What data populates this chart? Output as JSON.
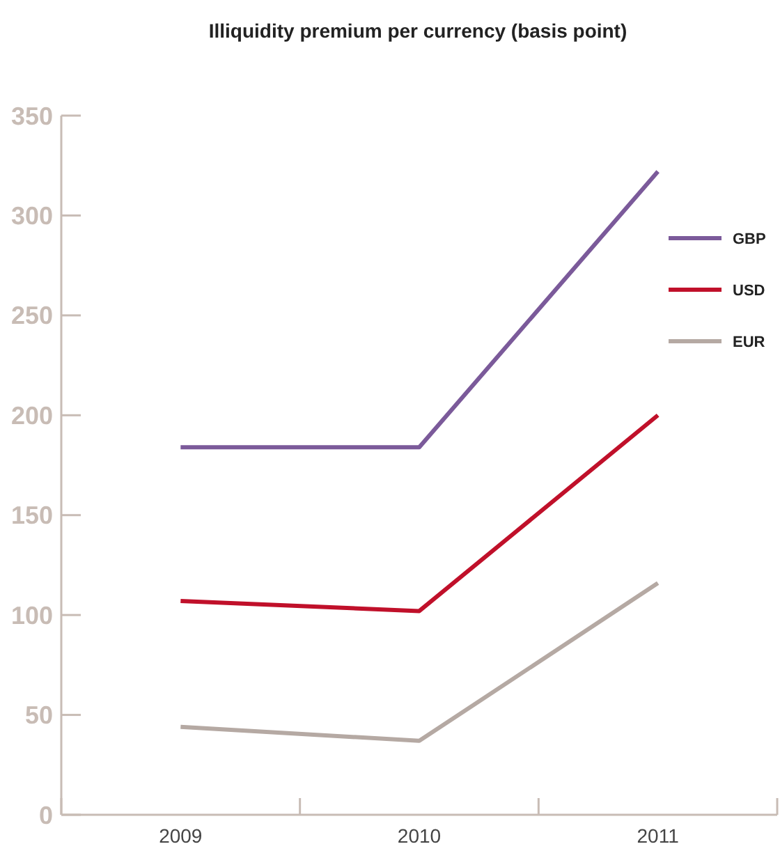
{
  "chart_data": {
    "type": "line",
    "title": "Illiquidity premium per currency (basis point)",
    "categories": [
      "2009",
      "2010",
      "2011"
    ],
    "series": [
      {
        "name": "GBP",
        "color": "#7b5a9a",
        "values": [
          184,
          184,
          322
        ]
      },
      {
        "name": "USD",
        "color": "#c0102a",
        "values": [
          107,
          102,
          200
        ]
      },
      {
        "name": "EUR",
        "color": "#b5a9a3",
        "values": [
          44,
          37,
          116
        ]
      }
    ],
    "ylim": [
      0,
      350
    ],
    "yticks": [
      0,
      50,
      100,
      150,
      200,
      250,
      300,
      350
    ],
    "grid": false,
    "legend": "right",
    "marker": "none",
    "line_style": "solid"
  }
}
